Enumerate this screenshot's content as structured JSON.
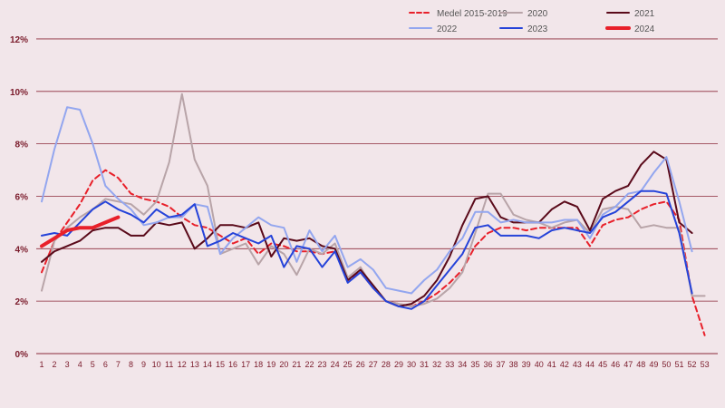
{
  "chart_data": {
    "type": "line",
    "x": [
      1,
      2,
      3,
      4,
      5,
      6,
      7,
      8,
      9,
      10,
      11,
      12,
      13,
      14,
      15,
      16,
      17,
      18,
      19,
      20,
      21,
      22,
      23,
      24,
      25,
      26,
      27,
      28,
      29,
      30,
      31,
      32,
      33,
      34,
      35,
      36,
      37,
      38,
      39,
      40,
      41,
      42,
      43,
      44,
      45,
      46,
      47,
      48,
      49,
      50,
      51,
      52,
      53
    ],
    "ylim": [
      0,
      12
    ],
    "yticks": [
      0,
      2,
      4,
      6,
      8,
      10,
      12
    ],
    "ytick_labels": [
      "0%",
      "2%",
      "4%",
      "6%",
      "8%",
      "10%",
      "12%"
    ],
    "xtick_labels": [
      "1",
      "2",
      "3",
      "4",
      "5",
      "6",
      "7",
      "8",
      "9",
      "10",
      "11",
      "12",
      "13",
      "14",
      "15",
      "16",
      "17",
      "18",
      "19",
      "20",
      "21",
      "22",
      "23",
      "24",
      "25",
      "26",
      "27",
      "28",
      "29",
      "30",
      "31",
      "32",
      "33",
      "34",
      "35",
      "36",
      "37",
      "38",
      "39",
      "40",
      "41",
      "42",
      "43",
      "44",
      "45",
      "46",
      "47",
      "48",
      "49",
      "50",
      "51",
      "52",
      "53"
    ],
    "grid": true,
    "legend_position": "top-right",
    "series": [
      {
        "name": "Medel 2015-2019",
        "color": "#e8202a",
        "dash": true,
        "width": 2,
        "values": [
          3.1,
          4.3,
          5.0,
          5.7,
          6.6,
          7.0,
          6.7,
          6.1,
          5.9,
          5.8,
          5.6,
          5.2,
          4.9,
          4.8,
          4.5,
          4.2,
          4.4,
          3.8,
          4.2,
          4.1,
          3.9,
          3.9,
          3.8,
          3.9,
          2.8,
          3.1,
          2.5,
          2.0,
          1.9,
          1.8,
          2.0,
          2.3,
          2.7,
          3.2,
          4.1,
          4.6,
          4.8,
          4.8,
          4.7,
          4.8,
          4.8,
          4.8,
          4.8,
          4.1,
          4.9,
          5.1,
          5.2,
          5.5,
          5.7,
          5.8,
          5.1,
          2.2,
          0.7
        ]
      },
      {
        "name": "2020",
        "color": "#b8a4a8",
        "dash": false,
        "width": 2,
        "values": [
          2.4,
          4.3,
          4.8,
          5.2,
          5.5,
          5.9,
          5.8,
          5.7,
          5.3,
          5.8,
          7.3,
          9.9,
          7.4,
          6.4,
          3.8,
          4.0,
          4.2,
          3.4,
          4.1,
          3.8,
          3.0,
          4.0,
          3.8,
          4.2,
          2.9,
          3.3,
          2.5,
          2.0,
          1.9,
          1.8,
          1.9,
          2.1,
          2.5,
          3.1,
          4.6,
          6.1,
          6.1,
          5.3,
          5.1,
          5.0,
          4.8,
          5.0,
          5.1,
          4.6,
          5.5,
          5.6,
          5.5,
          4.8,
          4.9,
          4.8,
          4.8,
          2.2,
          2.2
        ]
      },
      {
        "name": "2021",
        "color": "#5a0a1a",
        "dash": false,
        "width": 2,
        "values": [
          3.5,
          3.9,
          4.1,
          4.3,
          4.7,
          4.8,
          4.8,
          4.5,
          4.5,
          5.0,
          4.9,
          5.0,
          4.0,
          4.4,
          4.9,
          4.9,
          4.8,
          5.0,
          3.7,
          4.4,
          4.3,
          4.4,
          4.1,
          4.0,
          2.8,
          3.2,
          2.6,
          2.0,
          1.8,
          1.9,
          2.2,
          2.8,
          3.7,
          4.9,
          5.9,
          6.0,
          5.2,
          5.0,
          5.0,
          5.0,
          5.5,
          5.8,
          5.6,
          4.7,
          5.9,
          6.2,
          6.4,
          7.2,
          7.7,
          7.4,
          5.0,
          4.6,
          null
        ]
      },
      {
        "name": "2022",
        "color": "#93a6ef",
        "dash": false,
        "width": 2,
        "values": [
          5.8,
          7.8,
          9.4,
          9.3,
          8.0,
          6.4,
          5.9,
          5.5,
          4.9,
          5.0,
          5.2,
          5.2,
          5.7,
          5.6,
          3.8,
          4.4,
          4.8,
          5.2,
          4.9,
          4.8,
          3.5,
          4.7,
          3.9,
          4.5,
          3.3,
          3.6,
          3.2,
          2.5,
          2.4,
          2.3,
          2.8,
          3.2,
          3.9,
          4.4,
          5.4,
          5.4,
          5.0,
          5.1,
          5.0,
          5.0,
          5.0,
          5.1,
          5.1,
          4.4,
          5.3,
          5.6,
          6.1,
          6.2,
          6.9,
          7.5,
          5.8,
          3.9,
          null
        ]
      },
      {
        "name": "2023",
        "color": "#2543d9",
        "dash": false,
        "width": 2,
        "values": [
          4.5,
          4.6,
          4.5,
          5.0,
          5.5,
          5.8,
          5.5,
          5.3,
          5.0,
          5.5,
          5.2,
          5.3,
          5.7,
          4.1,
          4.3,
          4.6,
          4.4,
          4.2,
          4.5,
          3.3,
          4.1,
          4.0,
          3.3,
          3.9,
          2.7,
          3.1,
          2.5,
          2.0,
          1.8,
          1.7,
          2.0,
          2.6,
          3.2,
          3.8,
          4.8,
          4.9,
          4.5,
          4.5,
          4.5,
          4.4,
          4.7,
          4.8,
          4.7,
          4.6,
          5.2,
          5.4,
          5.8,
          6.2,
          6.2,
          6.1,
          4.6,
          2.3,
          null
        ]
      },
      {
        "name": "2024",
        "color": "#e8202a",
        "dash": false,
        "width": 4,
        "values": [
          4.1,
          4.4,
          4.7,
          4.8,
          4.8,
          5.0,
          5.2,
          null,
          null,
          null,
          null,
          null,
          null,
          null,
          null,
          null,
          null,
          null,
          null,
          null,
          null,
          null,
          null,
          null,
          null,
          null,
          null,
          null,
          null,
          null,
          null,
          null,
          null,
          null,
          null,
          null,
          null,
          null,
          null,
          null,
          null,
          null,
          null,
          null,
          null,
          null,
          null,
          null,
          null,
          null,
          null,
          null,
          null
        ]
      }
    ]
  },
  "legend": [
    {
      "label": "Medel 2015-2019",
      "color": "#e8202a",
      "dash": true,
      "width": 2
    },
    {
      "label": "2020",
      "color": "#b8a4a8",
      "dash": false,
      "width": 2
    },
    {
      "label": "2021",
      "color": "#5a0a1a",
      "dash": false,
      "width": 2
    },
    {
      "label": "2022",
      "color": "#93a6ef",
      "dash": false,
      "width": 2
    },
    {
      "label": "2023",
      "color": "#2543d9",
      "dash": false,
      "width": 2
    },
    {
      "label": "2024",
      "color": "#e8202a",
      "dash": false,
      "width": 4
    }
  ],
  "colors": {
    "background": "#f2e6ea",
    "gridline": "#8b2a3a",
    "axis_text": "#7a1a2a"
  }
}
